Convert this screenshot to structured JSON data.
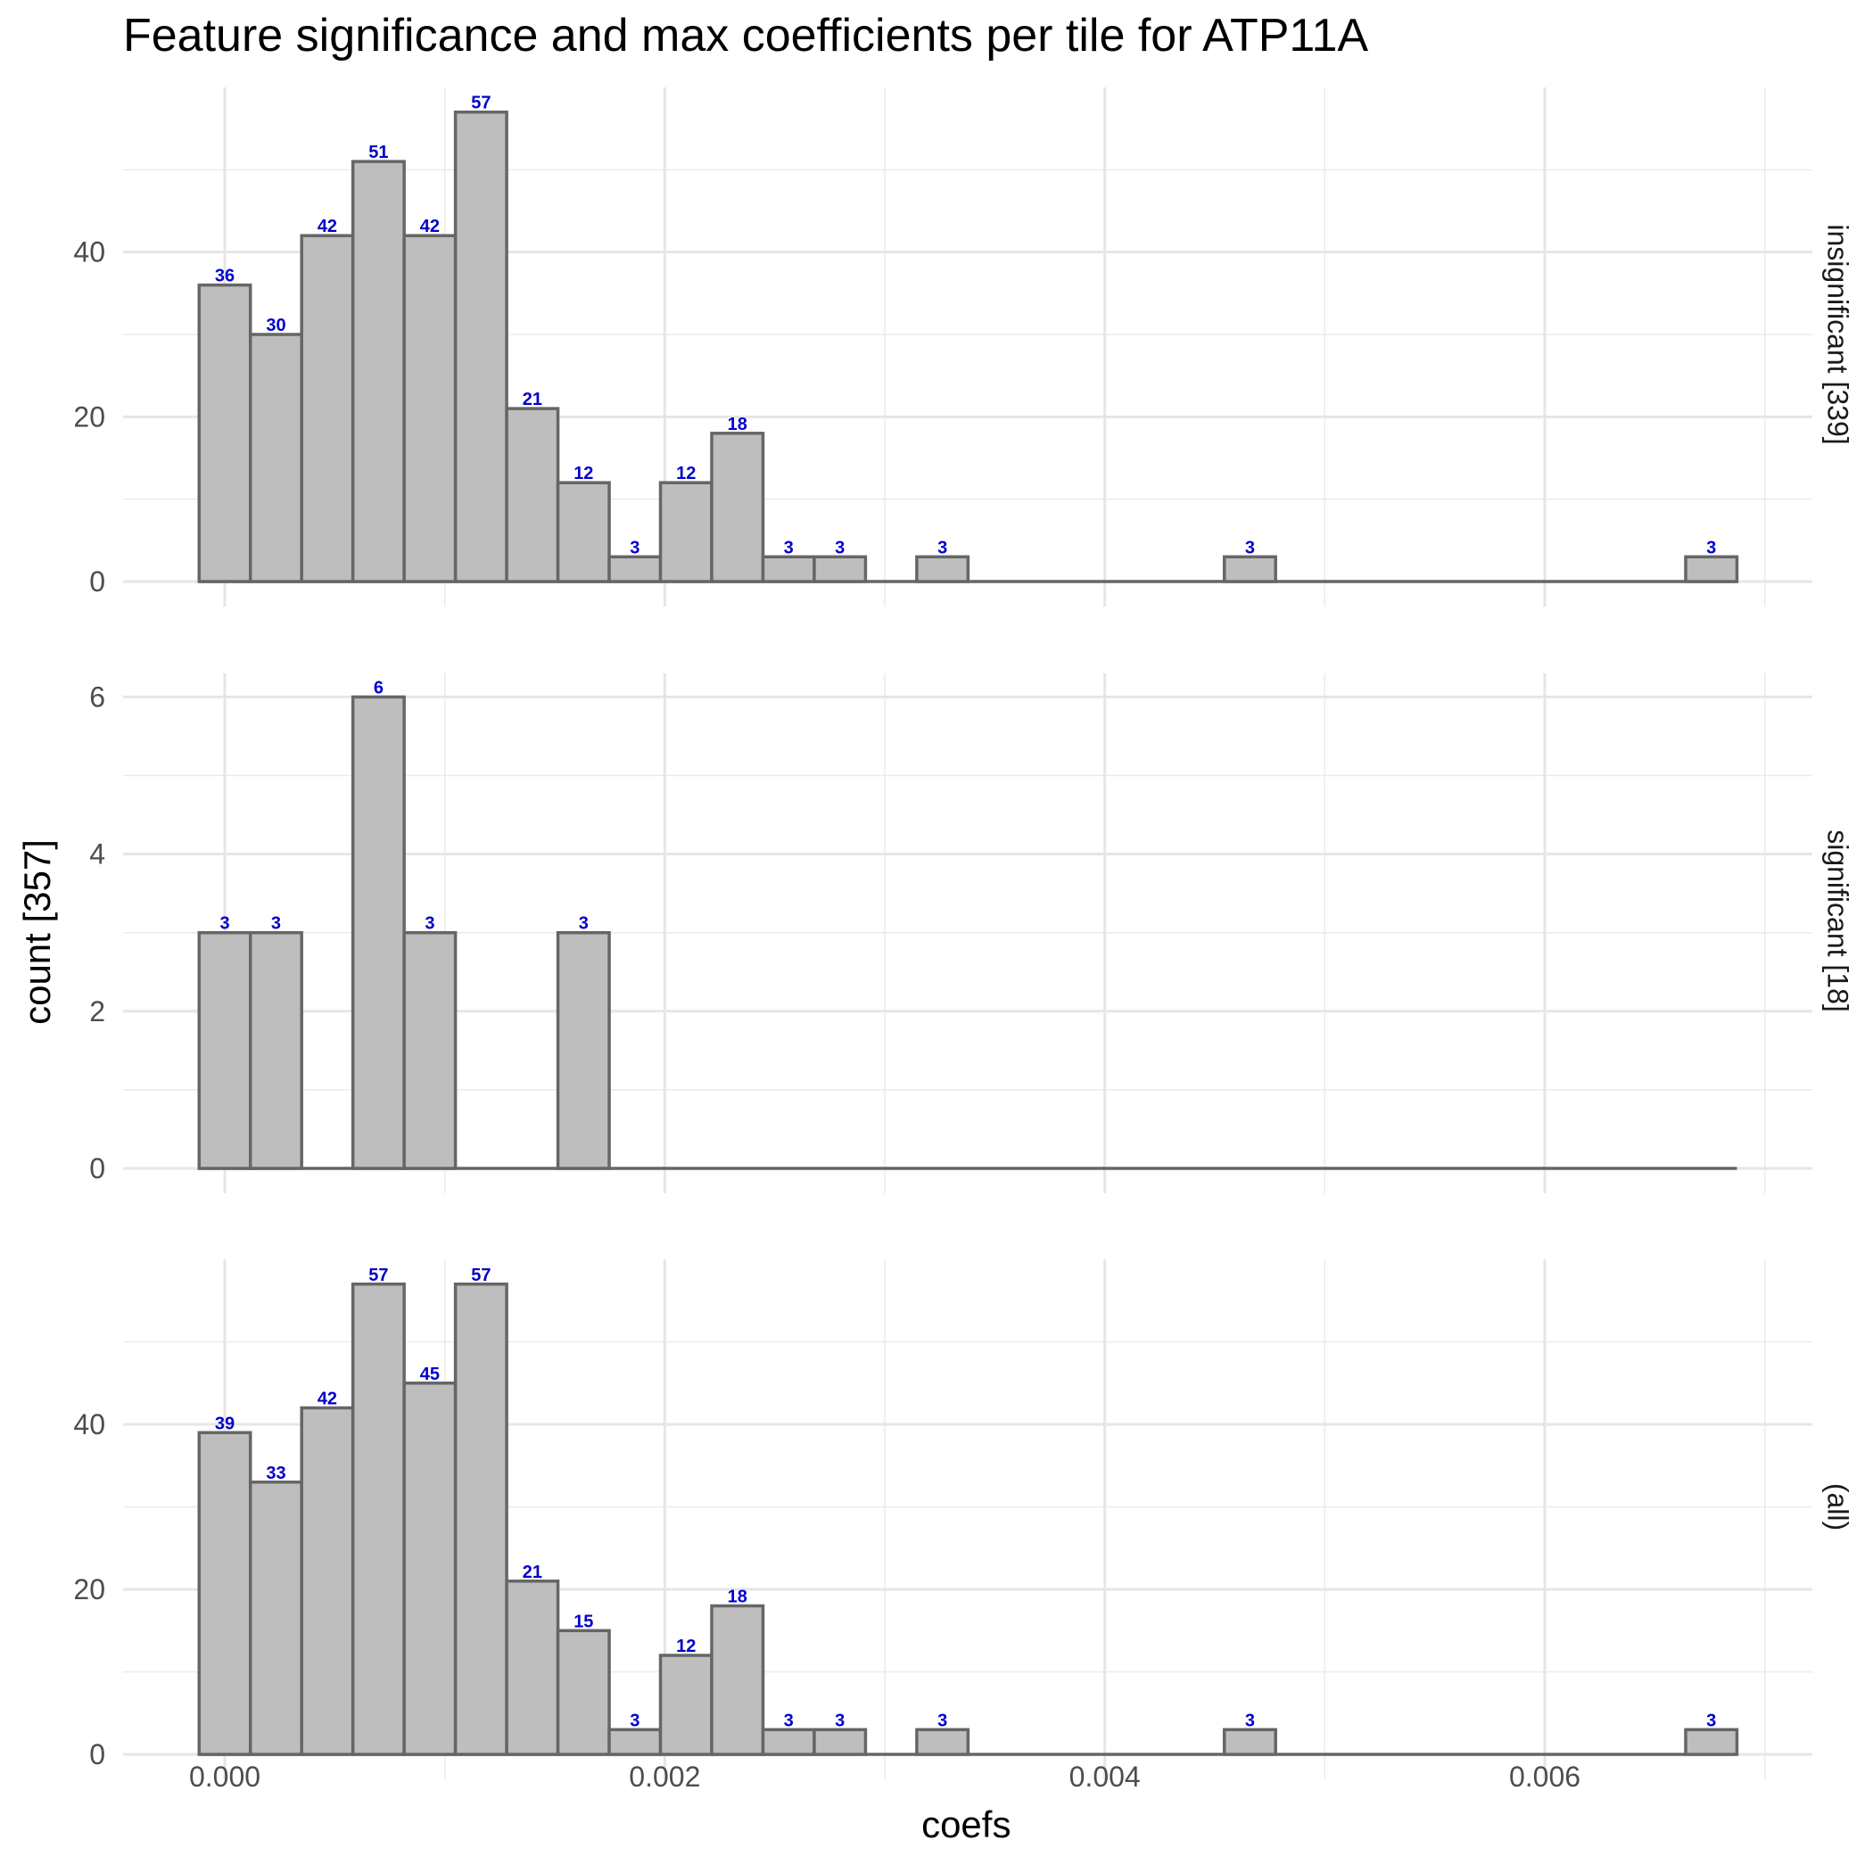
{
  "title": "Feature significance and max coefficients per tile for ATP11A",
  "chart_data": {
    "type": "bar",
    "subtype": "faceted histogram",
    "title": "Feature significance and max coefficients per tile for ATP11A",
    "xlabel": "coefs",
    "ylabel": "count [357]",
    "xlim": [
      -0.00046,
      0.00716
    ],
    "x_ticks": [
      0.0,
      0.002,
      0.004,
      0.006
    ],
    "x_tick_labels": [
      "0.000",
      "0.002",
      "0.004",
      "0.006"
    ],
    "bin_width": 0.000233,
    "grid": true,
    "bar_fill": "#bebebe",
    "bar_outline": "#666666",
    "label_color": "#0000cc",
    "facets": [
      {
        "label": "insignificant [339]",
        "ylim": [
          0,
          60
        ],
        "y_ticks": [
          0,
          20,
          40
        ],
        "bins": [
          {
            "x": 0.0,
            "count": 36
          },
          {
            "x": 0.000233,
            "count": 30
          },
          {
            "x": 0.000466,
            "count": 42
          },
          {
            "x": 0.000699,
            "count": 51
          },
          {
            "x": 0.000932,
            "count": 42
          },
          {
            "x": 0.001165,
            "count": 57
          },
          {
            "x": 0.001398,
            "count": 21
          },
          {
            "x": 0.001631,
            "count": 12
          },
          {
            "x": 0.001864,
            "count": 3
          },
          {
            "x": 0.002097,
            "count": 12
          },
          {
            "x": 0.00233,
            "count": 18
          },
          {
            "x": 0.002563,
            "count": 3
          },
          {
            "x": 0.002796,
            "count": 3
          },
          {
            "x": 0.003262,
            "count": 3
          },
          {
            "x": 0.00466,
            "count": 3
          },
          {
            "x": 0.006757,
            "count": 3
          }
        ]
      },
      {
        "label": "significant [18]",
        "ylim": [
          0,
          6.3
        ],
        "y_ticks": [
          0,
          2,
          4,
          6
        ],
        "bins": [
          {
            "x": 0.0,
            "count": 3
          },
          {
            "x": 0.000233,
            "count": 3
          },
          {
            "x": 0.000699,
            "count": 6
          },
          {
            "x": 0.000932,
            "count": 3
          },
          {
            "x": 0.001631,
            "count": 3
          }
        ]
      },
      {
        "label": "(all)",
        "ylim": [
          0,
          60
        ],
        "y_ticks": [
          0,
          20,
          40
        ],
        "bins": [
          {
            "x": 0.0,
            "count": 39
          },
          {
            "x": 0.000233,
            "count": 33
          },
          {
            "x": 0.000466,
            "count": 42
          },
          {
            "x": 0.000699,
            "count": 57
          },
          {
            "x": 0.000932,
            "count": 45
          },
          {
            "x": 0.001165,
            "count": 57
          },
          {
            "x": 0.001398,
            "count": 21
          },
          {
            "x": 0.001631,
            "count": 15
          },
          {
            "x": 0.001864,
            "count": 3
          },
          {
            "x": 0.002097,
            "count": 12
          },
          {
            "x": 0.00233,
            "count": 18
          },
          {
            "x": 0.002563,
            "count": 3
          },
          {
            "x": 0.002796,
            "count": 3
          },
          {
            "x": 0.003262,
            "count": 3
          },
          {
            "x": 0.00466,
            "count": 3
          },
          {
            "x": 0.006757,
            "count": 3
          }
        ]
      }
    ]
  }
}
